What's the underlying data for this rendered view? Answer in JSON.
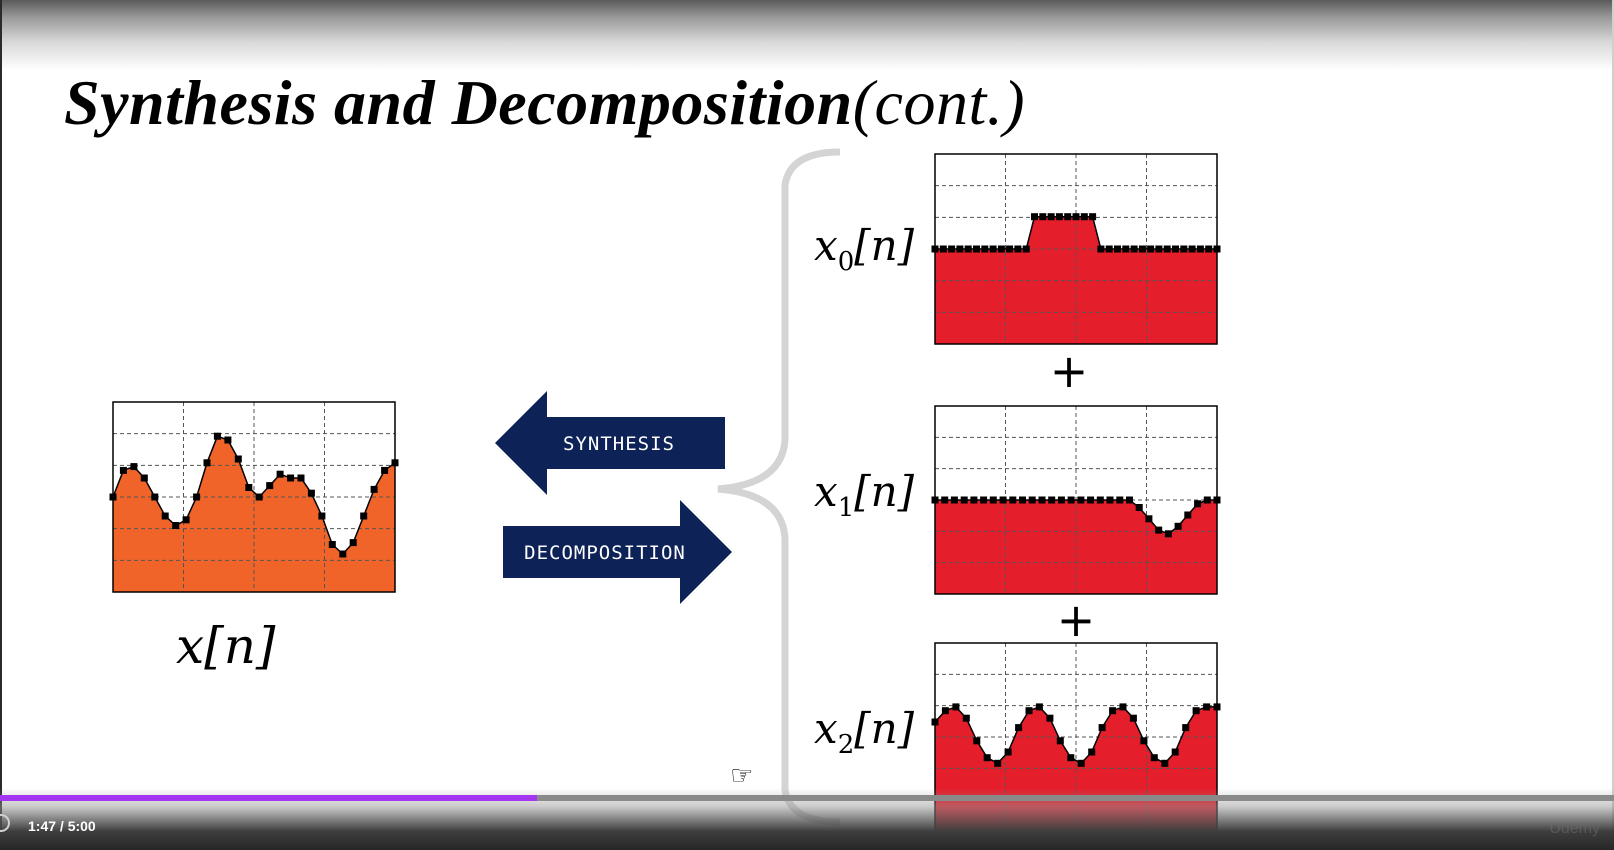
{
  "slide": {
    "title_main": "Synthesis and Decomposition",
    "title_cont": "(cont.)",
    "labels": {
      "x": {
        "base": "x",
        "sub": "",
        "arg": "[n]"
      },
      "x0": {
        "base": "x",
        "sub": "0",
        "arg": "[n]"
      },
      "x1": {
        "base": "x",
        "sub": "1",
        "arg": "[n]"
      },
      "x2": {
        "base": "x",
        "sub": "2",
        "arg": "[n]"
      }
    },
    "arrows": {
      "synthesis": "SYNTHESIS",
      "decomposition": "DECOMPOSITION"
    },
    "plus": "+",
    "colors": {
      "signal_fill": "#f0642a",
      "component_fill": "#e41e2b",
      "arrow_fill": "#0d2257",
      "brace": "#d4d4d4"
    },
    "signals": {
      "x": [
        0.5,
        0.64,
        0.66,
        0.6,
        0.5,
        0.4,
        0.35,
        0.38,
        0.5,
        0.68,
        0.82,
        0.8,
        0.7,
        0.55,
        0.5,
        0.56,
        0.62,
        0.6,
        0.6,
        0.52,
        0.4,
        0.25,
        0.2,
        0.26,
        0.4,
        0.54,
        0.64,
        0.68
      ],
      "x0": [
        0.5,
        0.5,
        0.5,
        0.5,
        0.5,
        0.5,
        0.5,
        0.5,
        0.5,
        0.5,
        0.5,
        0.5,
        0.67,
        0.67,
        0.67,
        0.67,
        0.67,
        0.67,
        0.67,
        0.67,
        0.5,
        0.5,
        0.5,
        0.5,
        0.5,
        0.5,
        0.5,
        0.5,
        0.5,
        0.5,
        0.5,
        0.5,
        0.5,
        0.5,
        0.5
      ],
      "x1": [
        0.5,
        0.5,
        0.5,
        0.5,
        0.5,
        0.5,
        0.5,
        0.5,
        0.5,
        0.5,
        0.5,
        0.5,
        0.5,
        0.5,
        0.5,
        0.5,
        0.5,
        0.5,
        0.5,
        0.5,
        0.5,
        0.46,
        0.4,
        0.34,
        0.32,
        0.36,
        0.42,
        0.48,
        0.5,
        0.5
      ],
      "x2": [
        0.58,
        0.64,
        0.66,
        0.6,
        0.48,
        0.39,
        0.36,
        0.42,
        0.55,
        0.64,
        0.66,
        0.6,
        0.48,
        0.39,
        0.36,
        0.42,
        0.55,
        0.64,
        0.66,
        0.6,
        0.48,
        0.39,
        0.36,
        0.42,
        0.55,
        0.64,
        0.66,
        0.66
      ]
    }
  },
  "player": {
    "time": "1:47 / 5:00",
    "progress": 0.333,
    "watermark": "Udemy",
    "icons": [
      "replay-icon",
      "hand-cursor-icon"
    ]
  }
}
